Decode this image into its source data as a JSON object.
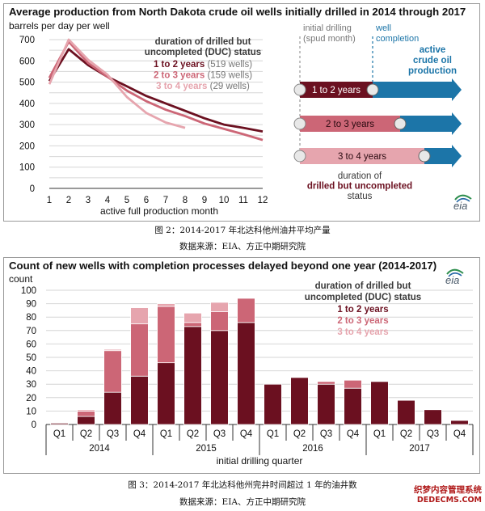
{
  "chart_data": [
    {
      "type": "line",
      "title": "Average production from North Dakota crude oil wells initially drilled in 2014 through 2017",
      "ylabel": "barrels per day per well",
      "xlabel": "active full production month",
      "x_ticks": [
        1,
        2,
        3,
        4,
        5,
        6,
        7,
        8,
        9,
        10,
        11,
        12
      ],
      "y_ticks": [
        0,
        50,
        100,
        150,
        200,
        250,
        300,
        350,
        400,
        450,
        500,
        550,
        600,
        650,
        700
      ],
      "ylim": [
        0,
        700
      ],
      "xlim": [
        1,
        12
      ],
      "legend_title": "duration of drilled but\nuncompleted (DUC) status",
      "series": [
        {
          "name": "1 to 2 years",
          "count": "(519 wells)",
          "color": "#6b1020",
          "x": [
            1,
            2,
            3,
            4,
            5,
            6,
            7,
            8,
            9,
            10,
            11,
            12
          ],
          "values": [
            505,
            655,
            580,
            525,
            480,
            435,
            400,
            365,
            330,
            300,
            285,
            268
          ]
        },
        {
          "name": "2 to 3 years",
          "count": "(159 wells)",
          "color": "#cc6676",
          "x": [
            1,
            2,
            3,
            4,
            5,
            6,
            7,
            8,
            9,
            10,
            11,
            12
          ],
          "values": [
            520,
            690,
            590,
            525,
            460,
            410,
            370,
            340,
            305,
            280,
            255,
            228
          ]
        },
        {
          "name": "3 to 4 years",
          "count": "(29 wells)",
          "color": "#e6a5ae",
          "x": [
            1,
            2,
            3,
            4,
            5,
            6,
            7,
            8
          ],
          "values": [
            490,
            700,
            605,
            535,
            430,
            355,
            310,
            285
          ]
        }
      ],
      "diagram": {
        "top_labels": [
          "initial drilling\n(spud month)",
          "well\ncompletion"
        ],
        "active_label": "active\ncrude oil\nproduction",
        "bars": [
          "1 to 2 years",
          "2 to 3 years",
          "3 to 4 years"
        ],
        "bottom_label": "duration of\ndrilled but uncompleted\nstatus",
        "colors": {
          "dark": "#6b1020",
          "mid": "#cc6676",
          "light": "#e6a5ae",
          "blue": "#1c75a8"
        }
      },
      "logo": "eia"
    },
    {
      "type": "bar",
      "title": "Count of new wells with completion processes delayed beyond one year (2014-2017)",
      "ylabel": "count",
      "xlabel": "initial drilling quarter",
      "ylim": [
        0,
        100
      ],
      "y_ticks": [
        0,
        10,
        20,
        30,
        40,
        50,
        60,
        70,
        80,
        90,
        100
      ],
      "categories": [
        "Q1",
        "Q2",
        "Q3",
        "Q4",
        "Q1",
        "Q2",
        "Q3",
        "Q4",
        "Q1",
        "Q2",
        "Q3",
        "Q4",
        "Q1",
        "Q2",
        "Q3",
        "Q4"
      ],
      "years": [
        "2014",
        "2015",
        "2016",
        "2017"
      ],
      "legend_title": "duration of drilled but\nuncompleted (DUC) status",
      "series": [
        {
          "name": "1 to 2 years",
          "color": "#6b1020",
          "values": [
            1,
            6,
            24,
            36,
            46,
            73,
            70,
            76,
            30,
            35,
            30,
            27,
            32,
            18,
            11,
            3
          ]
        },
        {
          "name": "2 to 3 years",
          "color": "#cc6676",
          "values": [
            0,
            4,
            31,
            39,
            42,
            3,
            14,
            18,
            0,
            0,
            2,
            6,
            0,
            0,
            0,
            0
          ]
        },
        {
          "name": "3 to 4 years",
          "color": "#e6a5ae",
          "values": [
            0,
            1,
            1,
            12,
            2,
            7,
            7,
            0,
            0,
            0,
            0,
            0,
            0,
            0,
            0,
            0
          ]
        }
      ],
      "logo": "eia"
    }
  ],
  "captions": {
    "fig2": "图 2：2014-2017 年北达科他州油井平均产量",
    "fig2_source": "数据来源：EIA、方正中期研究院",
    "fig3": "图 3：2014-2017 年北达科他州完井时间超过 1 年的油井数",
    "fig3_source": "数据来源：EIA、方正中期研究院"
  },
  "watermark": {
    "line1": "织梦内容管理系统",
    "line2": "DEDECMS.COM"
  }
}
